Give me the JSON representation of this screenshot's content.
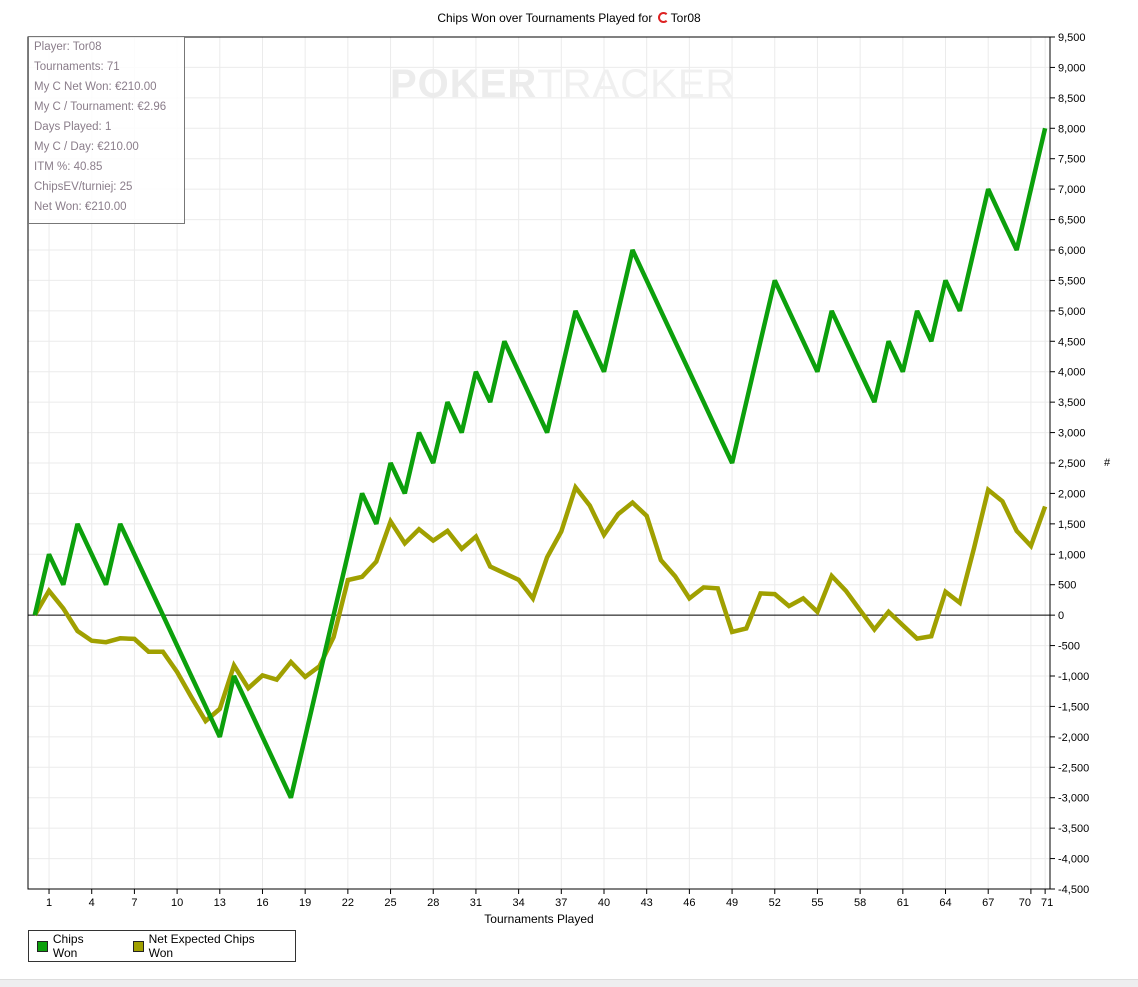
{
  "chart_data": {
    "type": "line",
    "title": "Chips Won over Tournaments Played for",
    "player_name": "Tor08",
    "xlabel": "Tournaments Played",
    "ylabel": "#",
    "xlim": [
      0,
      71
    ],
    "ylim": [
      -4500,
      9500
    ],
    "grid": true,
    "legend_position": "bottom-left",
    "x_ticks": [
      "1",
      "4",
      "7",
      "10",
      "13",
      "16",
      "19",
      "22",
      "25",
      "28",
      "31",
      "34",
      "37",
      "40",
      "43",
      "46",
      "49",
      "52",
      "55",
      "58",
      "61",
      "64",
      "67",
      "70",
      "71"
    ],
    "y_ticks": [
      "-4,500",
      "-4,000",
      "-3,500",
      "-3,000",
      "-2,500",
      "-2,000",
      "-1,500",
      "-1,000",
      "-500",
      "0",
      "500",
      "1,000",
      "1,500",
      "2,000",
      "2,500",
      "3,000",
      "3,500",
      "4,000",
      "4,500",
      "5,000",
      "5,500",
      "6,000",
      "6,500",
      "7,000",
      "7,500",
      "8,000",
      "8,500",
      "9,000",
      "9,500"
    ],
    "series": [
      {
        "name": "Chips Won",
        "color": "#0ca00c",
        "values": [
          0,
          1000,
          500,
          1500,
          1000,
          500,
          1500,
          1000,
          500,
          0,
          -500,
          -1000,
          -1500,
          -2000,
          -1000,
          -1500,
          -2000,
          -2500,
          -3000,
          -2000,
          -1000,
          0,
          1000,
          2000,
          1500,
          2500,
          2000,
          3000,
          2500,
          3500,
          3000,
          4000,
          3500,
          4500,
          4000,
          3500,
          3000,
          4000,
          5000,
          4500,
          4000,
          5000,
          6000,
          5500,
          5000,
          4500,
          4000,
          3500,
          3000,
          2500,
          3500,
          4500,
          5500,
          5000,
          4500,
          4000,
          5000,
          4500,
          4000,
          3500,
          4500,
          4000,
          5000,
          4500,
          5500,
          5000,
          6000,
          7000,
          6500,
          6000,
          7000,
          8000
        ]
      },
      {
        "name": "Net Expected Chips Won",
        "color": "#a0a000",
        "values": [
          0,
          400,
          110,
          -260,
          -420,
          -445,
          -380,
          -390,
          -600,
          -600,
          -935,
          -1345,
          -1740,
          -1540,
          -825,
          -1200,
          -990,
          -1060,
          -770,
          -1015,
          -840,
          -360,
          577,
          630,
          880,
          1540,
          1180,
          1410,
          1225,
          1385,
          1090,
          1290,
          800,
          690,
          580,
          275,
          950,
          1375,
          2100,
          1800,
          1320,
          1660,
          1850,
          1630,
          905,
          640,
          275,
          456,
          440,
          -275,
          -220,
          357,
          346,
          148,
          275,
          55,
          643,
          400,
          82,
          -236,
          55,
          -165,
          -385,
          -346,
          385,
          203,
          1100,
          2060,
          1870,
          1385,
          1137,
          1785
        ]
      }
    ]
  },
  "stats": {
    "player": "Player: Tor08",
    "tournaments": "Tournaments: 71",
    "net_won_c": "My C Net Won: €210.00",
    "per_tournament": "My C / Tournament: €2.96",
    "days_played": "Days Played: 1",
    "per_day": "My C / Day: €210.00",
    "itm": "ITM %: 40.85",
    "chipsev": "ChipsEV/turniej: 25",
    "net_won": "Net Won: €210.00"
  },
  "watermark": {
    "a": "POKER",
    "b": "TRACKER"
  }
}
